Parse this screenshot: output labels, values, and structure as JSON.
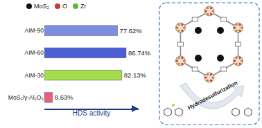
{
  "chart_data": {
    "type": "bar",
    "orientation": "horizontal",
    "categories": [
      "AIM-90",
      "AIM-60",
      "AIM-30",
      "MoS₂/γ-Al₂O₃"
    ],
    "values": [
      77.62,
      86.74,
      82.13,
      8.63
    ],
    "value_labels": [
      "77.62%",
      "86.74%",
      "82.13%",
      "8.63%"
    ],
    "colors": [
      "#7d8ee0",
      "#4d5fd6",
      "#a6dc4a",
      "#e8607a"
    ],
    "xlim": [
      0,
      100
    ],
    "xticks": [],
    "xlabel": "HDS activity",
    "data_labels": true,
    "tick_labels": "y",
    "grid": false,
    "annotations": [
      "MoS₂",
      "O",
      "Zr",
      "Hydrodesulfurization"
    ]
  }
}
